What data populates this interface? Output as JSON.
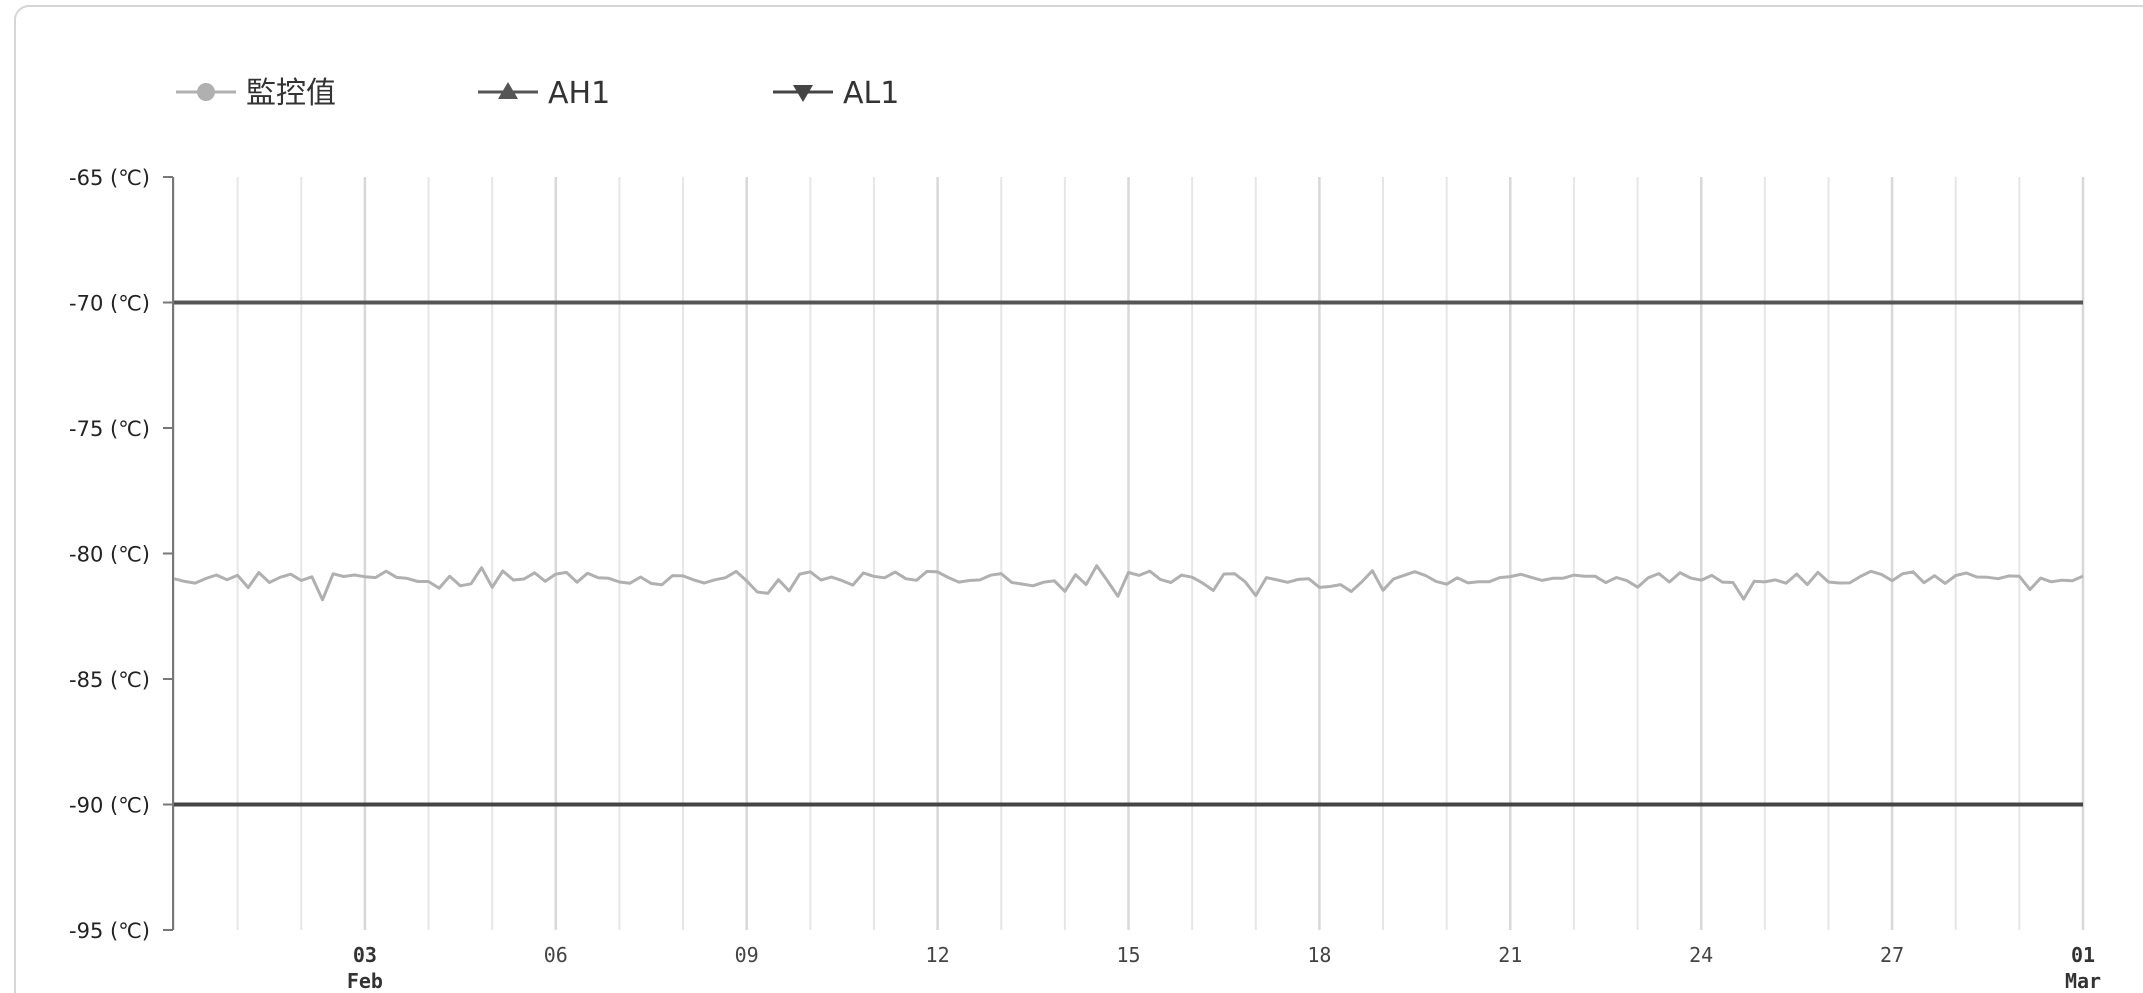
{
  "chart_data": {
    "type": "line",
    "xlim": [
      "2024-01-31",
      "2024-03-01"
    ],
    "ylim": [
      -95,
      -65
    ],
    "grid": true,
    "legend_placement": "top-left",
    "ylabels": [
      "-65 (℃)",
      "-70 (℃)",
      "-75 (℃)",
      "-80 (℃)",
      "-85 (℃)",
      "-90 (℃)",
      "-95 (℃)"
    ],
    "yticks": [
      -65,
      -70,
      -75,
      -80,
      -85,
      -90,
      -95
    ],
    "xticks": [
      {
        "date": "2024-02-03",
        "label": "03",
        "sublabel": "Feb"
      },
      {
        "date": "2024-02-06",
        "label": "06",
        "sublabel": ""
      },
      {
        "date": "2024-02-09",
        "label": "09",
        "sublabel": ""
      },
      {
        "date": "2024-02-12",
        "label": "12",
        "sublabel": ""
      },
      {
        "date": "2024-02-15",
        "label": "15",
        "sublabel": ""
      },
      {
        "date": "2024-02-18",
        "label": "18",
        "sublabel": ""
      },
      {
        "date": "2024-02-21",
        "label": "21",
        "sublabel": ""
      },
      {
        "date": "2024-02-24",
        "label": "24",
        "sublabel": ""
      },
      {
        "date": "2024-02-27",
        "label": "27",
        "sublabel": ""
      },
      {
        "date": "2024-03-01",
        "label": "01",
        "sublabel": "Mar"
      }
    ],
    "series": [
      {
        "name": "監控值",
        "marker": "circle",
        "color": "#b0b0b0",
        "x": [
          "2024-01-31",
          "2024-02-01",
          "2024-02-02",
          "2024-02-03",
          "2024-02-04",
          "2024-02-05",
          "2024-02-06",
          "2024-02-07",
          "2024-02-08",
          "2024-02-09",
          "2024-02-10",
          "2024-02-11",
          "2024-02-12",
          "2024-02-13",
          "2024-02-14",
          "2024-02-15",
          "2024-02-16",
          "2024-02-17",
          "2024-02-18",
          "2024-02-19",
          "2024-02-20",
          "2024-02-21",
          "2024-02-22",
          "2024-02-23",
          "2024-02-24",
          "2024-02-25",
          "2024-02-26",
          "2024-02-27",
          "2024-02-28",
          "2024-02-29",
          "2024-03-01"
        ],
        "values": [
          -81.0,
          -80.9,
          -81.1,
          -80.9,
          -81.0,
          -81.1,
          -80.9,
          -81.0,
          -81.0,
          -80.9,
          -81.1,
          -81.0,
          -80.9,
          -81.0,
          -81.1,
          -80.9,
          -81.0,
          -81.0,
          -81.1,
          -80.9,
          -81.0,
          -80.9,
          -81.0,
          -81.1,
          -80.9,
          -81.0,
          -81.0,
          -80.9,
          -81.1,
          -81.0,
          -80.9
        ]
      },
      {
        "name": "AH1",
        "marker": "triangle-up",
        "color": "#555555",
        "x": [
          "2024-01-31",
          "2024-03-01"
        ],
        "values": [
          -70,
          -70
        ]
      },
      {
        "name": "AL1",
        "marker": "triangle-down",
        "color": "#444444",
        "x": [
          "2024-01-31",
          "2024-03-01"
        ],
        "values": [
          -90,
          -90
        ]
      }
    ]
  }
}
